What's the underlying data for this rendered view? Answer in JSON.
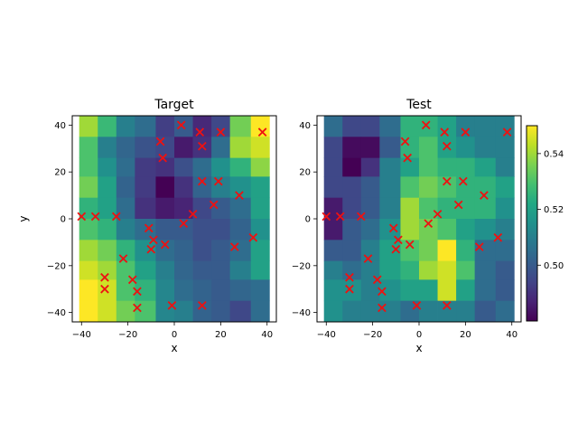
{
  "chart_data": {
    "type": "heatmap",
    "x_range": [
      -44,
      44
    ],
    "y_range": [
      -44,
      44
    ],
    "x_ticks": [
      -40,
      -20,
      0,
      20,
      40
    ],
    "y_ticks": [
      -40,
      -20,
      0,
      20,
      40
    ],
    "grid": false,
    "colorbar": {
      "range": [
        0.48,
        0.55
      ],
      "ticks": [
        0.5,
        0.52,
        0.54
      ],
      "tick_labels": [
        "0.50",
        "0.52",
        "0.54"
      ],
      "colormap": "viridis"
    },
    "grid_x_edges": [
      -41,
      -33,
      -25,
      -17,
      -8,
      0,
      8,
      16,
      24,
      33,
      41
    ],
    "grid_y_edges": [
      -44,
      -35,
      -26,
      -18,
      -9,
      0,
      9,
      18,
      26,
      35,
      44
    ],
    "panels": [
      {
        "title": "Target",
        "xlabel": "x",
        "ylabel": "y",
        "values_top_to_bottom": [
          [
            0.54,
            0.527,
            0.51,
            0.505,
            0.493,
            0.5,
            0.488,
            0.495,
            0.535,
            0.55
          ],
          [
            0.53,
            0.51,
            0.503,
            0.498,
            0.495,
            0.485,
            0.49,
            0.505,
            0.54,
            0.545
          ],
          [
            0.53,
            0.515,
            0.505,
            0.492,
            0.49,
            0.497,
            0.505,
            0.515,
            0.525,
            0.538
          ],
          [
            0.535,
            0.52,
            0.502,
            0.492,
            0.48,
            0.49,
            0.502,
            0.51,
            0.515,
            0.52
          ],
          [
            0.525,
            0.52,
            0.505,
            0.49,
            0.485,
            0.487,
            0.495,
            0.5,
            0.505,
            0.52
          ],
          [
            0.53,
            0.525,
            0.51,
            0.505,
            0.5,
            0.5,
            0.497,
            0.497,
            0.502,
            0.515
          ],
          [
            0.54,
            0.535,
            0.525,
            0.515,
            0.505,
            0.502,
            0.497,
            0.5,
            0.505,
            0.52
          ],
          [
            0.545,
            0.54,
            0.53,
            0.52,
            0.51,
            0.503,
            0.5,
            0.5,
            0.51,
            0.52
          ],
          [
            0.55,
            0.545,
            0.53,
            0.525,
            0.512,
            0.505,
            0.502,
            0.5,
            0.503,
            0.505
          ],
          [
            0.55,
            0.545,
            0.535,
            0.53,
            0.512,
            0.51,
            0.502,
            0.5,
            0.495,
            0.505
          ]
        ]
      },
      {
        "title": "Test",
        "xlabel": "x",
        "ylabel": "",
        "values_top_to_bottom": [
          [
            0.505,
            0.495,
            0.495,
            0.505,
            0.525,
            0.525,
            0.52,
            0.51,
            0.51,
            0.51
          ],
          [
            0.495,
            0.482,
            0.482,
            0.5,
            0.525,
            0.53,
            0.52,
            0.515,
            0.51,
            0.51
          ],
          [
            0.495,
            0.48,
            0.49,
            0.51,
            0.52,
            0.53,
            0.525,
            0.525,
            0.52,
            0.51
          ],
          [
            0.495,
            0.495,
            0.5,
            0.51,
            0.53,
            0.535,
            0.53,
            0.525,
            0.525,
            0.52
          ],
          [
            0.485,
            0.495,
            0.5,
            0.51,
            0.54,
            0.53,
            0.525,
            0.525,
            0.525,
            0.515
          ],
          [
            0.485,
            0.5,
            0.505,
            0.515,
            0.54,
            0.535,
            0.53,
            0.52,
            0.515,
            0.51
          ],
          [
            0.5,
            0.5,
            0.51,
            0.52,
            0.53,
            0.535,
            0.55,
            0.525,
            0.505,
            0.505
          ],
          [
            0.51,
            0.505,
            0.51,
            0.52,
            0.525,
            0.54,
            0.545,
            0.53,
            0.505,
            0.5
          ],
          [
            0.515,
            0.515,
            0.51,
            0.515,
            0.52,
            0.52,
            0.545,
            0.52,
            0.505,
            0.5
          ],
          [
            0.515,
            0.51,
            0.51,
            0.51,
            0.505,
            0.51,
            0.51,
            0.51,
            0.5,
            0.505
          ]
        ]
      }
    ],
    "markers": {
      "symbol": "x",
      "color": "#ee1111",
      "points": [
        [
          -40,
          1
        ],
        [
          -34,
          1
        ],
        [
          -25,
          1
        ],
        [
          -22,
          -17
        ],
        [
          -30,
          -25
        ],
        [
          -30,
          -30
        ],
        [
          -18,
          -26
        ],
        [
          -16,
          -31
        ],
        [
          -16,
          -38
        ],
        [
          -11,
          -4
        ],
        [
          -9,
          -9
        ],
        [
          -10,
          -13
        ],
        [
          -4,
          -11
        ],
        [
          -6,
          33
        ],
        [
          -5,
          26
        ],
        [
          4,
          -2
        ],
        [
          8,
          2
        ],
        [
          3,
          40
        ],
        [
          11,
          37
        ],
        [
          12,
          31
        ],
        [
          12,
          16
        ],
        [
          20,
          37
        ],
        [
          19,
          16
        ],
        [
          17,
          6
        ],
        [
          28,
          10
        ],
        [
          26,
          -12
        ],
        [
          34,
          -8
        ],
        [
          38,
          37
        ],
        [
          -1,
          -37
        ],
        [
          12,
          -37
        ]
      ]
    }
  }
}
